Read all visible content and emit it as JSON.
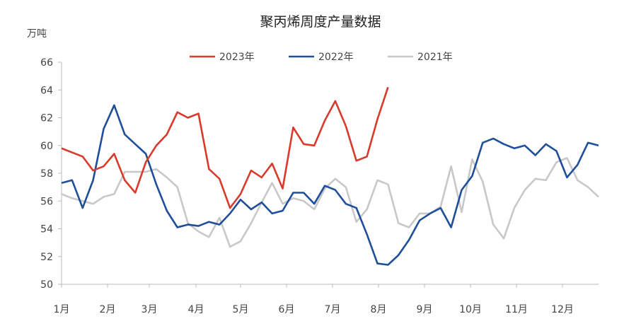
{
  "chart_data": {
    "type": "line",
    "title": "聚丙烯周度产量数据",
    "ylabel": "万吨",
    "xlabel": "",
    "ylim": [
      50,
      66
    ],
    "yticks": [
      "50",
      "52",
      "54",
      "56",
      "58",
      "60",
      "62",
      "64",
      "66"
    ],
    "x_tick_labels": [
      "1月",
      "2月",
      "3月",
      "4月",
      "5月",
      "6月",
      "7月",
      "8月",
      "9月",
      "10月",
      "11月",
      "12月"
    ],
    "x_unit": "week index (0-51)",
    "legend_position": "top-center",
    "grid": false,
    "series": [
      {
        "name": "2023年",
        "color": "#d93a2b",
        "values": [
          59.8,
          59.5,
          59.2,
          58.2,
          58.5,
          59.4,
          57.5,
          56.6,
          58.8,
          60.0,
          60.8,
          62.4,
          62.0,
          62.3,
          58.3,
          57.6,
          55.5,
          56.5,
          58.2,
          57.7,
          58.7,
          56.9,
          61.3,
          60.1,
          60.0,
          61.8,
          63.2,
          61.4,
          58.9,
          59.2,
          61.9,
          64.2
        ]
      },
      {
        "name": "2022年",
        "color": "#1f4e9a",
        "values": [
          57.3,
          57.5,
          55.5,
          57.5,
          61.2,
          62.9,
          60.8,
          60.1,
          59.4,
          57.2,
          55.3,
          54.1,
          54.3,
          54.2,
          54.5,
          54.3,
          55.1,
          56.1,
          55.4,
          55.9,
          55.1,
          55.3,
          56.6,
          56.6,
          55.8,
          57.1,
          56.8,
          55.8,
          55.5,
          53.6,
          51.5,
          51.4,
          52.1,
          53.2,
          54.6,
          55.1,
          55.5,
          54.1,
          56.8,
          57.8,
          60.2,
          60.5,
          60.1,
          59.8,
          60.0,
          59.3,
          60.1,
          59.6,
          57.7,
          58.6,
          60.2,
          60.0
        ]
      },
      {
        "name": "2021年",
        "color": "#c8c8c8",
        "values": [
          56.5,
          56.2,
          56.0,
          55.8,
          56.3,
          56.5,
          58.1,
          58.1,
          58.1,
          58.3,
          57.7,
          57.0,
          54.4,
          53.8,
          53.4,
          54.8,
          52.7,
          53.1,
          54.4,
          55.9,
          57.3,
          55.8,
          56.2,
          56.0,
          55.4,
          56.9,
          57.6,
          57.0,
          54.5,
          55.4,
          57.5,
          57.2,
          54.4,
          54.1,
          55.1,
          55.1,
          55.6,
          58.5,
          55.2,
          59.0,
          57.4,
          54.3,
          53.3,
          55.5,
          56.8,
          57.6,
          57.5,
          58.8,
          59.1,
          57.5,
          57.0,
          56.3
        ]
      }
    ]
  }
}
